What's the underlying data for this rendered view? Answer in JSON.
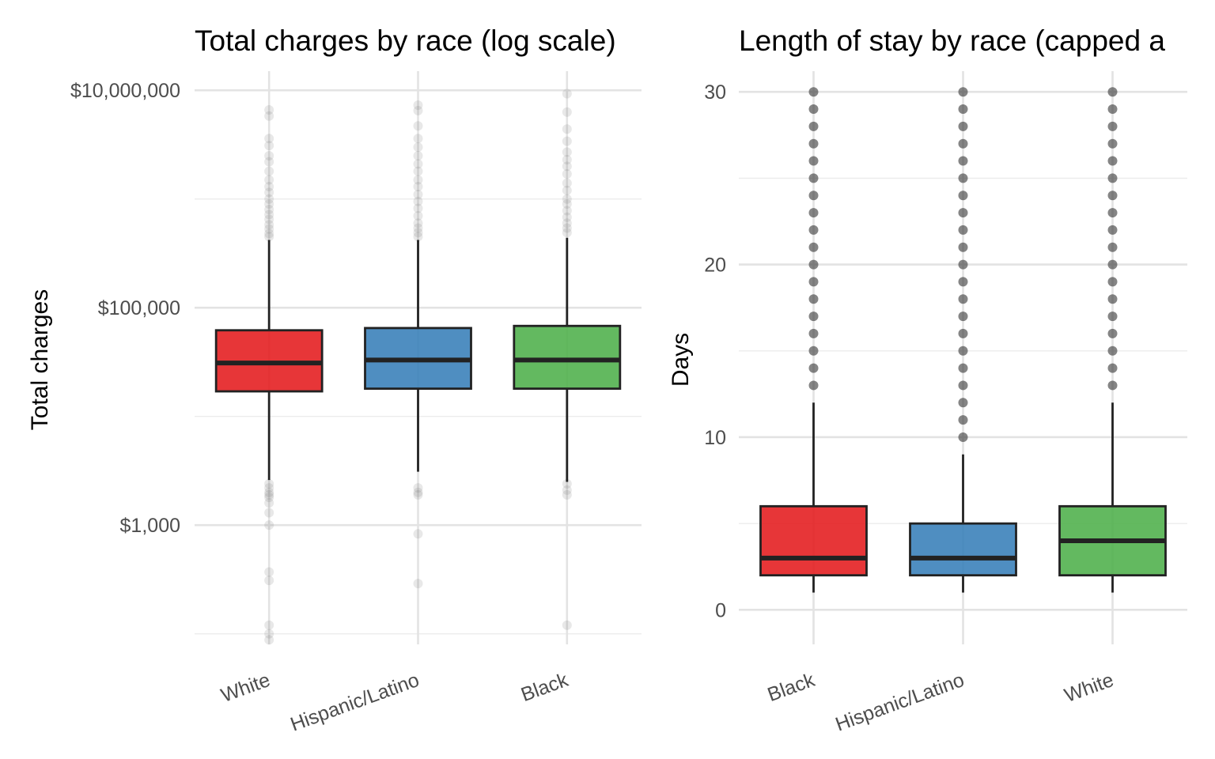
{
  "chart_data": [
    {
      "type": "box",
      "title": "Total charges by race (log scale)",
      "xlabel": "",
      "ylabel": "Total charges",
      "y_scale": "log10",
      "ylim": [
        80,
        15000000
      ],
      "y_ticks": [
        1000,
        100000,
        10000000
      ],
      "y_tick_labels": [
        "$1,000",
        "$100,000",
        "$10,000,000"
      ],
      "y_minor_ticks": [
        100,
        10000,
        1000000
      ],
      "categories": [
        "White",
        "Hispanic/Latino",
        "Black"
      ],
      "colors": [
        "#e41a1c",
        "#377eb8",
        "#4daf4a"
      ],
      "outlier_color": "#666666",
      "outlier_opacity": 0.15,
      "grid": true,
      "legend": "none",
      "boxes": [
        {
          "category": "White",
          "q1": 17000,
          "median": 31000,
          "q3": 62000,
          "whisker_low": 2600,
          "whisker_high": 420000,
          "outliers": [
            6600000,
            5800000,
            3600000,
            3100000,
            2500000,
            2200000,
            1800000,
            1500000,
            1300000,
            1150000,
            1000000,
            900000,
            800000,
            720000,
            650000,
            580000,
            530000,
            480000,
            450000,
            2400,
            2200,
            2000,
            1900,
            1800,
            1600,
            1300,
            1000,
            370,
            310,
            120,
            100,
            88
          ]
        },
        {
          "category": "Hispanic/Latino",
          "q1": 18000,
          "median": 33000,
          "q3": 65000,
          "whisker_low": 3100,
          "whisker_high": 420000,
          "outliers": [
            7300000,
            6500000,
            4700000,
            3600000,
            3000000,
            2500000,
            2100000,
            1800000,
            1500000,
            1300000,
            1100000,
            950000,
            820000,
            700000,
            600000,
            540000,
            490000,
            450000,
            2200,
            2000,
            1900,
            830,
            290
          ]
        },
        {
          "category": "Black",
          "q1": 18000,
          "median": 33000,
          "q3": 68000,
          "whisker_low": 2500,
          "whisker_high": 440000,
          "outliers": [
            9300000,
            6300000,
            4400000,
            3400000,
            2700000,
            2300000,
            2000000,
            1700000,
            1400000,
            1200000,
            1000000,
            900000,
            780000,
            680000,
            600000,
            540000,
            490000,
            2400,
            2100,
            1900,
            120
          ]
        }
      ]
    },
    {
      "type": "box",
      "title": "Length of stay by race (capped a",
      "xlabel": "",
      "ylabel": "Days",
      "ylim": [
        -2,
        31.2
      ],
      "y_ticks": [
        0,
        10,
        20,
        30
      ],
      "y_tick_labels": [
        "0",
        "10",
        "20",
        "30"
      ],
      "y_minor_ticks": [
        5,
        15,
        25
      ],
      "categories": [
        "Black",
        "Hispanic/Latino",
        "White"
      ],
      "colors": [
        "#e41a1c",
        "#377eb8",
        "#4daf4a"
      ],
      "outlier_color": "#333333",
      "outlier_opacity": 0.6,
      "grid": true,
      "legend": "none",
      "boxes": [
        {
          "category": "Black",
          "q1": 2,
          "median": 3,
          "q3": 6,
          "whisker_low": 1,
          "whisker_high": 12,
          "outliers": [
            13,
            14,
            15,
            16,
            17,
            18,
            19,
            20,
            21,
            22,
            23,
            24,
            25,
            26,
            27,
            28,
            29,
            30
          ]
        },
        {
          "category": "Hispanic/Latino",
          "q1": 2,
          "median": 3,
          "q3": 5,
          "whisker_low": 1,
          "whisker_high": 9,
          "outliers": [
            10,
            11,
            12,
            13,
            14,
            15,
            16,
            17,
            18,
            19,
            20,
            21,
            22,
            23,
            24,
            25,
            26,
            27,
            28,
            29,
            30
          ]
        },
        {
          "category": "White",
          "q1": 2,
          "median": 4,
          "q3": 6,
          "whisker_low": 1,
          "whisker_high": 12,
          "outliers": [
            13,
            14,
            15,
            16,
            17,
            18,
            19,
            20,
            21,
            22,
            23,
            24,
            25,
            26,
            27,
            28,
            29,
            30
          ]
        }
      ]
    }
  ]
}
